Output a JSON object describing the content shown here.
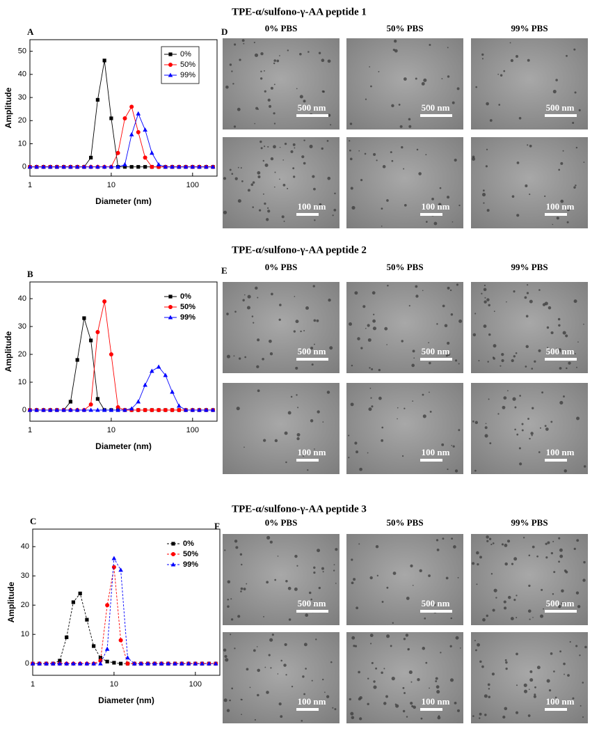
{
  "chart_data": [
    {
      "type": "line",
      "panel_label": "A",
      "x_label": "Diameter (nm)",
      "y_label": "Amplitude",
      "xscale": "log",
      "xlim": [
        1,
        200
      ],
      "xticks": [
        1,
        10,
        100
      ],
      "ylim": [
        -4,
        55
      ],
      "yticks": [
        0,
        10,
        20,
        30,
        40,
        50
      ],
      "legend": "upper right",
      "legend_frame": true,
      "line_style": "solid",
      "x": [
        1,
        1.21,
        1.47,
        1.78,
        2.15,
        2.61,
        3.16,
        3.83,
        4.64,
        5.62,
        6.81,
        8.25,
        10,
        12.1,
        14.7,
        17.8,
        21.5,
        26.1,
        31.6,
        38.3,
        46.4,
        56.2,
        68.1,
        82.5,
        100,
        121,
        147,
        178
      ],
      "series": [
        {
          "name": "0%",
          "color": "#000000",
          "marker": "square",
          "values": [
            0,
            0,
            0,
            0,
            0,
            0,
            0,
            0,
            0,
            4,
            29,
            46,
            21,
            0,
            0,
            0,
            0,
            0,
            0,
            0,
            0,
            0,
            0,
            0,
            0,
            0,
            0,
            0
          ]
        },
        {
          "name": "50%",
          "color": "#ff0000",
          "marker": "circle",
          "values": [
            0,
            0,
            0,
            0,
            0,
            0,
            0,
            0,
            0,
            0,
            0,
            0,
            0,
            6,
            21,
            26,
            15,
            4,
            0,
            0,
            0,
            0,
            0,
            0,
            0,
            0,
            0,
            0
          ]
        },
        {
          "name": "99%",
          "color": "#0000ff",
          "marker": "triangle",
          "values": [
            0,
            0,
            0,
            0,
            0,
            0,
            0,
            0,
            0,
            0,
            0,
            0,
            0,
            0,
            1,
            14,
            23,
            16,
            6,
            1,
            0,
            0,
            0,
            0,
            0,
            0,
            0,
            0
          ]
        }
      ]
    },
    {
      "type": "line",
      "panel_label": "B",
      "x_label": "Diameter (nm)",
      "y_label": "Amplitude",
      "xscale": "log",
      "xlim": [
        1,
        200
      ],
      "xticks": [
        1,
        10,
        100
      ],
      "ylim": [
        -4,
        46
      ],
      "yticks": [
        0,
        10,
        20,
        30,
        40
      ],
      "legend": "upper right",
      "legend_frame": false,
      "line_style": "solid",
      "x": [
        1,
        1.21,
        1.47,
        1.78,
        2.15,
        2.61,
        3.16,
        3.83,
        4.64,
        5.62,
        6.81,
        8.25,
        10,
        12.1,
        14.7,
        17.8,
        21.5,
        26.1,
        31.6,
        38.3,
        46.4,
        56.2,
        68.1,
        82.5,
        100,
        121,
        147,
        178
      ],
      "series": [
        {
          "name": "0%",
          "color": "#000000",
          "marker": "square",
          "values": [
            0,
            0,
            0,
            0,
            0,
            0,
            3,
            18,
            33,
            25,
            4,
            0,
            0,
            0,
            0,
            0,
            0,
            0,
            0,
            0,
            0,
            0,
            0,
            0,
            0,
            0,
            0,
            0
          ]
        },
        {
          "name": "50%",
          "color": "#ff0000",
          "marker": "circle",
          "values": [
            0,
            0,
            0,
            0,
            0,
            0,
            0,
            0,
            0,
            2,
            28,
            39,
            20,
            1,
            0,
            0,
            0,
            0,
            0,
            0,
            0,
            0,
            0,
            0,
            0,
            0,
            0,
            0
          ]
        },
        {
          "name": "99%",
          "color": "#0000ff",
          "marker": "triangle",
          "values": [
            0,
            0,
            0,
            0,
            0,
            0,
            0,
            0,
            0,
            0,
            0,
            0,
            0,
            0,
            0,
            0.5,
            3,
            9,
            14,
            15.5,
            12.5,
            6.5,
            1.5,
            0,
            0,
            0,
            0,
            0
          ]
        }
      ]
    },
    {
      "type": "line",
      "panel_label": "C",
      "x_label": "Diameter (nm)",
      "y_label": "Amplitude",
      "xscale": "log",
      "xlim": [
        1,
        200
      ],
      "xticks": [
        1,
        10,
        100
      ],
      "ylim": [
        -4,
        46
      ],
      "yticks": [
        0,
        10,
        20,
        30,
        40
      ],
      "legend": "upper right",
      "legend_frame": false,
      "line_style": "dashed",
      "x": [
        1,
        1.21,
        1.47,
        1.78,
        2.15,
        2.61,
        3.16,
        3.83,
        4.64,
        5.62,
        6.81,
        8.25,
        10,
        12.1,
        14.7,
        17.8,
        21.5,
        26.1,
        31.6,
        38.3,
        46.4,
        56.2,
        68.1,
        82.5,
        100,
        121,
        147,
        178
      ],
      "series": [
        {
          "name": "0%",
          "color": "#000000",
          "marker": "square",
          "values": [
            0,
            0,
            0,
            0,
            1,
            9,
            21,
            24,
            15,
            6,
            2,
            0.7,
            0.3,
            0,
            0,
            0,
            0,
            0,
            0,
            0,
            0,
            0,
            0,
            0,
            0,
            0,
            0,
            0
          ]
        },
        {
          "name": "50%",
          "color": "#ff0000",
          "marker": "circle",
          "values": [
            0,
            0,
            0,
            0,
            0,
            0,
            0,
            0,
            0,
            0,
            1,
            20,
            33,
            8,
            0,
            0,
            0,
            0,
            0,
            0,
            0,
            0,
            0,
            0,
            0,
            0,
            0,
            0
          ]
        },
        {
          "name": "99%",
          "color": "#0000ff",
          "marker": "triangle",
          "values": [
            0,
            0,
            0,
            0,
            0,
            0,
            0,
            0,
            0,
            0,
            0,
            5,
            36,
            32,
            2,
            0,
            0,
            0,
            0,
            0,
            0,
            0,
            0,
            0,
            0,
            0,
            0,
            0
          ]
        }
      ]
    }
  ],
  "image_panels": [
    {
      "title": "TPE-α/sulfono-γ-AA peptide 1",
      "panel_label": "D",
      "columns": [
        "0% PBS",
        "50% PBS",
        "99% PBS"
      ],
      "scale_bars": [
        [
          "500 nm",
          "500 nm",
          "500 nm"
        ],
        [
          "100 nm",
          "100 nm",
          "100 nm"
        ]
      ]
    },
    {
      "title": "TPE-α/sulfono-γ-AA peptide 2",
      "panel_label": "E",
      "columns": [
        "0% PBS",
        "50% PBS",
        "99% PBS"
      ],
      "scale_bars": [
        [
          "500 nm",
          "500 nm",
          "500 nm"
        ],
        [
          "100 nm",
          "100 nm",
          "100 nm"
        ]
      ]
    },
    {
      "title": "TPE-α/sulfono-γ-AA peptide 3",
      "panel_label": "F",
      "columns": [
        "0% PBS",
        "50% PBS",
        "99% PBS"
      ],
      "scale_bars": [
        [
          "500 nm",
          "500 nm",
          "500 nm"
        ],
        [
          "100 nm",
          "100 nm",
          "100 nm"
        ]
      ]
    }
  ]
}
